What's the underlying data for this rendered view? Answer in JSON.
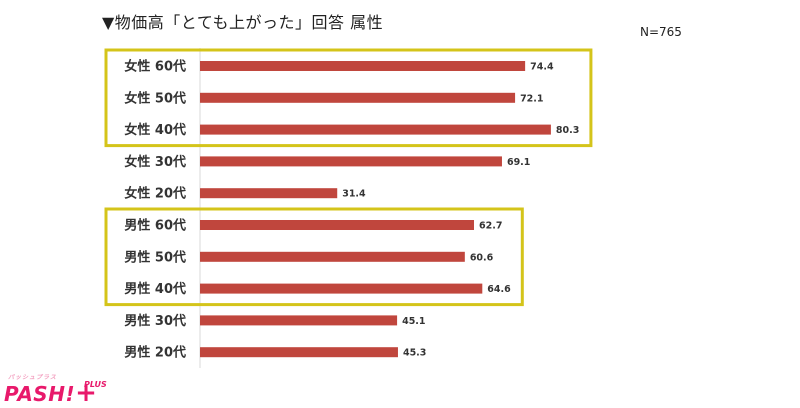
{
  "header": {
    "title": "▼物価高「とても上がった」回答 属性",
    "sample_size": "N=765"
  },
  "logo": {
    "main": "PASH!",
    "plus": "+",
    "sup": "PLUS",
    "kana": "パッシュプラス"
  },
  "colors": {
    "bar": "#c0463d",
    "highlight_border": "#d4c41a",
    "axis": "#d9d9d9"
  },
  "chart_data": {
    "type": "bar",
    "orientation": "horizontal",
    "categories": [
      "女性 60代",
      "女性 50代",
      "女性 40代",
      "女性 30代",
      "女性 20代",
      "男性 60代",
      "男性 50代",
      "男性 40代",
      "男性 30代",
      "男性 20代"
    ],
    "values": [
      74.4,
      72.1,
      80.3,
      69.1,
      31.4,
      62.7,
      60.6,
      64.6,
      45.1,
      45.3
    ],
    "value_labels": [
      "74.4",
      "72.1",
      "80.3",
      "69.1",
      "31.4",
      "62.7",
      "60.6",
      "64.6",
      "45.1",
      "45.3"
    ],
    "xlim": [
      0,
      100
    ],
    "grid": false,
    "highlight_groups": [
      {
        "start": 0,
        "end": 2
      },
      {
        "start": 5,
        "end": 7
      }
    ]
  }
}
